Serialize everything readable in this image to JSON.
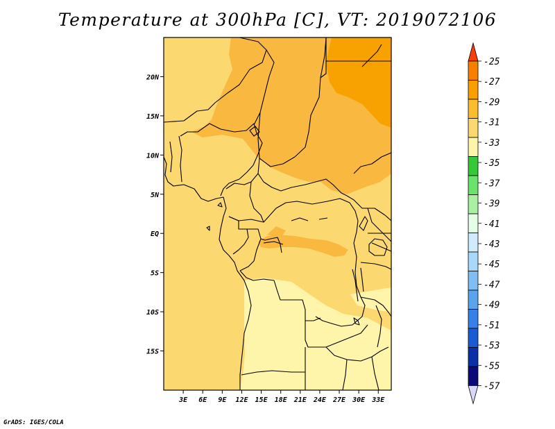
{
  "title": "Temperature at 300hPa [C], VT: 2019072106",
  "credit": "GrADS: IGES/COLA",
  "map": {
    "lon_range": [
      0,
      35
    ],
    "lat_range": [
      -20,
      25
    ],
    "lon_ticks": [
      "3E",
      "6E",
      "9E",
      "12E",
      "15E",
      "18E",
      "21E",
      "24E",
      "27E",
      "30E",
      "33E"
    ],
    "lat_ticks": [
      "20N",
      "15N",
      "10N",
      "5N",
      "EQ",
      "5S",
      "10S",
      "15S"
    ],
    "field_colors": {
      "minus29_to_minus27": "#f7a200",
      "minus31_to_minus29": "#f9b840",
      "minus33_to_minus31": "#fbd870",
      "minus35_to_minus33": "#fff5aa"
    },
    "border_color": "#000000"
  },
  "colorbar": {
    "labels": [
      "-25",
      "-27",
      "-29",
      "-31",
      "-33",
      "-35",
      "-37",
      "-39",
      "-41",
      "-43",
      "-45",
      "-47",
      "-49",
      "-51",
      "-53",
      "-55",
      "-57"
    ],
    "colors": [
      "#f86010",
      "#f88000",
      "#f9a000",
      "#fbbd30",
      "#fbd870",
      "#fff5aa",
      "#37c837",
      "#6be36b",
      "#a9f0a3",
      "#e4fde4",
      "#d0ebfb",
      "#a8d8fa",
      "#7fbef2",
      "#5aa3ed",
      "#3680e8",
      "#1b5bd1",
      "#0a2fa8",
      "#0b0b78",
      "#d8d8f8"
    ],
    "top_arrow_color": "#f83e08",
    "bottom_arrow_color": "#d8d8f8"
  },
  "chart_data": {
    "type": "heatmap",
    "title": "Temperature at 300hPa [C], VT: 2019072106",
    "variable": "Temperature at 300hPa",
    "units": "C",
    "valid_time": "2019072106",
    "x_ticks": [
      "3E",
      "6E",
      "9E",
      "12E",
      "15E",
      "18E",
      "21E",
      "24E",
      "27E",
      "30E",
      "33E"
    ],
    "y_ticks": [
      "20N",
      "15N",
      "10N",
      "5N",
      "EQ",
      "5S",
      "10S",
      "15S"
    ],
    "color_levels": [
      -25,
      -27,
      -29,
      -31,
      -33,
      -35,
      -37,
      -39,
      -41,
      -43,
      -45,
      -47,
      -49,
      -51,
      -53,
      -55,
      -57
    ]
  }
}
